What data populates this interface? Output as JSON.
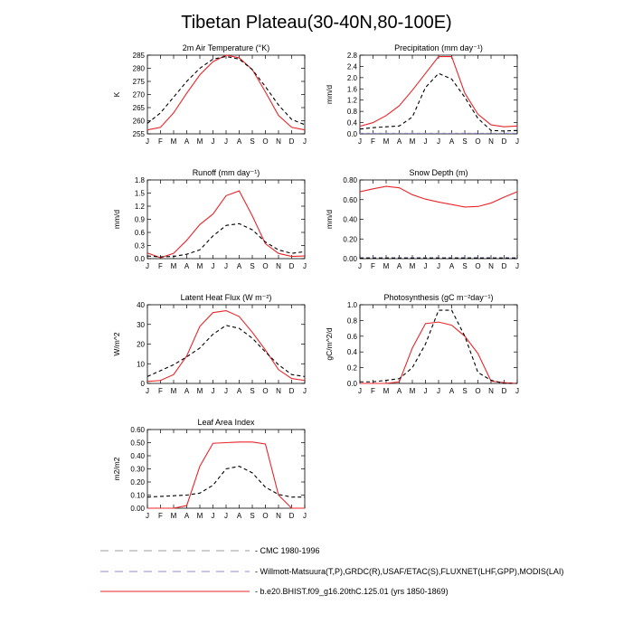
{
  "page": {
    "title": "Tibetan Plateau(30-40N,80-100E)"
  },
  "legend": [
    {
      "label": "CMC 1980-1996",
      "color": "#9a9a9a",
      "dash": "long-dash"
    },
    {
      "label": "Willmott-Matsuura(T,P),GRDC(R),USAF/ETAC(S),FLUXNET(LHF,GPP),MODIS(LAI)",
      "color": "#8c8cd8",
      "dash": "long-dash"
    },
    {
      "label": "b.e20.BHIST.f09_g16.20thC.125.01 (yrs 1850-1869)",
      "color": "#e8262a",
      "dash": "solid"
    }
  ],
  "chart_data": [
    {
      "type": "line",
      "title": "2m Air Temperature (°K)",
      "ylabel": "K",
      "ylim": [
        255,
        285
      ],
      "yticks": [
        255,
        260,
        265,
        270,
        275,
        280,
        285
      ],
      "ytick_labels": [
        "255",
        "260",
        "265",
        "270",
        "275",
        "280",
        "285"
      ],
      "x_labels": [
        "J",
        "F",
        "M",
        "A",
        "M",
        "J",
        "J",
        "A",
        "S",
        "O",
        "N",
        "D",
        "J"
      ],
      "series": [
        {
          "color": "#e8262a",
          "style": "solid",
          "values": [
            256.5,
            257.5,
            263,
            270.5,
            277.5,
            282.5,
            285,
            284,
            279.5,
            271,
            262,
            257.5,
            256.5
          ]
        },
        {
          "color": "#000000",
          "style": "dash",
          "values": [
            259,
            263,
            269,
            275,
            280,
            283.5,
            284.5,
            283.5,
            279.5,
            273,
            266,
            260.5,
            258.5
          ]
        }
      ]
    },
    {
      "type": "line",
      "title": "Precipitation (mm day⁻¹)",
      "ylabel": "mm/d",
      "ylim": [
        0,
        2.8
      ],
      "yticks": [
        0,
        0.4,
        0.8,
        1.2,
        1.6,
        2.0,
        2.4,
        2.8
      ],
      "ytick_labels": [
        "0.0",
        "0.4",
        "0.8",
        "1.2",
        "1.6",
        "2.0",
        "2.4",
        "2.8"
      ],
      "x_labels": [
        "J",
        "F",
        "M",
        "A",
        "M",
        "J",
        "J",
        "A",
        "S",
        "O",
        "N",
        "D",
        "J"
      ],
      "series": [
        {
          "color": "#e8262a",
          "style": "solid",
          "values": [
            0.27,
            0.4,
            0.65,
            1.0,
            1.55,
            2.15,
            2.75,
            2.75,
            1.45,
            0.7,
            0.32,
            0.25,
            0.28
          ]
        },
        {
          "color": "#000000",
          "style": "dash",
          "values": [
            0.17,
            0.22,
            0.25,
            0.28,
            0.6,
            1.65,
            2.15,
            1.95,
            1.3,
            0.55,
            0.12,
            0.1,
            0.12
          ]
        },
        {
          "color": "#8c8cd8",
          "style": "dash",
          "values": [
            0.02,
            0.02,
            0.02,
            0.02,
            0.02,
            0.02,
            0.02,
            0.02,
            0.02,
            0.02,
            0.02,
            0.02,
            0.02
          ]
        }
      ]
    },
    {
      "type": "line",
      "title": "Runoff (mm day⁻¹)",
      "ylabel": "mm/d",
      "ylim": [
        0,
        1.8
      ],
      "yticks": [
        0,
        0.3,
        0.6,
        0.9,
        1.2,
        1.5,
        1.8
      ],
      "ytick_labels": [
        "0.0",
        "0.3",
        "0.6",
        "0.9",
        "1.2",
        "1.5",
        "1.8"
      ],
      "x_labels": [
        "J",
        "F",
        "M",
        "A",
        "M",
        "J",
        "J",
        "A",
        "S",
        "O",
        "N",
        "D",
        "J"
      ],
      "series": [
        {
          "color": "#e8262a",
          "style": "solid",
          "values": [
            0.13,
            0.02,
            0.12,
            0.42,
            0.78,
            1.02,
            1.44,
            1.55,
            0.98,
            0.34,
            0.12,
            0.05,
            0.06
          ]
        },
        {
          "color": "#000000",
          "style": "dash",
          "values": [
            0.06,
            0.04,
            0.05,
            0.1,
            0.2,
            0.52,
            0.76,
            0.8,
            0.66,
            0.38,
            0.2,
            0.12,
            0.16
          ]
        }
      ]
    },
    {
      "type": "line",
      "title": "Snow Depth (m)",
      "ylabel": "mm/d",
      "ylim": [
        0,
        0.8
      ],
      "yticks": [
        0,
        0.2,
        0.4,
        0.6,
        0.8
      ],
      "ytick_labels": [
        "0.00",
        "0.20",
        "0.40",
        "0.60",
        "0.80"
      ],
      "x_labels": [
        "J",
        "F",
        "M",
        "A",
        "M",
        "J",
        "J",
        "A",
        "S",
        "O",
        "N",
        "D",
        "J"
      ],
      "series": [
        {
          "color": "#e8262a",
          "style": "solid",
          "values": [
            0.68,
            0.71,
            0.735,
            0.72,
            0.65,
            0.605,
            0.575,
            0.55,
            0.525,
            0.53,
            0.565,
            0.625,
            0.68
          ]
        },
        {
          "color": "#8c8cd8",
          "style": "dash",
          "values": [
            0.01,
            0.01,
            0.01,
            0.01,
            0.01,
            0.01,
            0.01,
            0.01,
            0.01,
            0.01,
            0.01,
            0.01,
            0.01
          ]
        },
        {
          "color": "#000000",
          "style": "dash",
          "values": [
            0.005,
            0.005,
            0.005,
            0.005,
            0.005,
            0.005,
            0.005,
            0.005,
            0.005,
            0.005,
            0.005,
            0.005,
            0.005
          ]
        }
      ]
    },
    {
      "type": "line",
      "title": "Latent Heat Flux (W m⁻²)",
      "ylabel": "W/m^2",
      "ylim": [
        0,
        40
      ],
      "yticks": [
        0,
        10,
        20,
        30,
        40
      ],
      "ytick_labels": [
        "0",
        "10",
        "20",
        "30",
        "40"
      ],
      "x_labels": [
        "J",
        "F",
        "M",
        "A",
        "M",
        "J",
        "J",
        "A",
        "S",
        "O",
        "N",
        "D",
        "J"
      ],
      "series": [
        {
          "color": "#e8262a",
          "style": "solid",
          "values": [
            1,
            1.5,
            4.5,
            14,
            29,
            36,
            37,
            34,
            26,
            17,
            7,
            2.5,
            1.5
          ]
        },
        {
          "color": "#000000",
          "style": "dash",
          "values": [
            3.5,
            6.5,
            9.5,
            13.5,
            18,
            25,
            29.5,
            28,
            23,
            16,
            9.5,
            4.5,
            3.5
          ]
        }
      ]
    },
    {
      "type": "line",
      "title": "Photosynthesis (gC m⁻²day⁻¹)",
      "ylabel": "gC/m^2/d",
      "ylim": [
        0,
        1.0
      ],
      "yticks": [
        0,
        0.2,
        0.4,
        0.6,
        0.8,
        1.0
      ],
      "ytick_labels": [
        "0.0",
        "0.2",
        "0.4",
        "0.6",
        "0.8",
        "1.0"
      ],
      "x_labels": [
        "J",
        "F",
        "M",
        "A",
        "M",
        "J",
        "J",
        "A",
        "S",
        "O",
        "N",
        "D",
        "J"
      ],
      "series": [
        {
          "color": "#e8262a",
          "style": "solid",
          "values": [
            0,
            0,
            0,
            0.02,
            0.45,
            0.76,
            0.78,
            0.74,
            0.6,
            0.38,
            0.03,
            0.01,
            0
          ]
        },
        {
          "color": "#000000",
          "style": "dash",
          "values": [
            0.02,
            0.02,
            0.04,
            0.06,
            0.2,
            0.5,
            0.93,
            0.93,
            0.6,
            0.14,
            0.04,
            0,
            0
          ]
        }
      ]
    },
    {
      "type": "line",
      "title": "Leaf Area Index",
      "ylabel": "m2/m2",
      "ylim": [
        0,
        0.6
      ],
      "yticks": [
        0,
        0.1,
        0.2,
        0.3,
        0.4,
        0.5,
        0.6
      ],
      "ytick_labels": [
        "0.00",
        "0.10",
        "0.20",
        "0.30",
        "0.40",
        "0.50",
        "0.60"
      ],
      "x_labels": [
        "J",
        "F",
        "M",
        "A",
        "M",
        "J",
        "J",
        "A",
        "S",
        "O",
        "N",
        "D",
        "J"
      ],
      "series": [
        {
          "color": "#e8262a",
          "style": "solid",
          "values": [
            0,
            0,
            0,
            0.02,
            0.32,
            0.495,
            0.5,
            0.505,
            0.505,
            0.49,
            0.1,
            0,
            0
          ]
        },
        {
          "color": "#000000",
          "style": "dash",
          "values": [
            0.085,
            0.09,
            0.095,
            0.1,
            0.115,
            0.175,
            0.3,
            0.32,
            0.27,
            0.16,
            0.105,
            0.085,
            0.085
          ]
        }
      ]
    }
  ]
}
